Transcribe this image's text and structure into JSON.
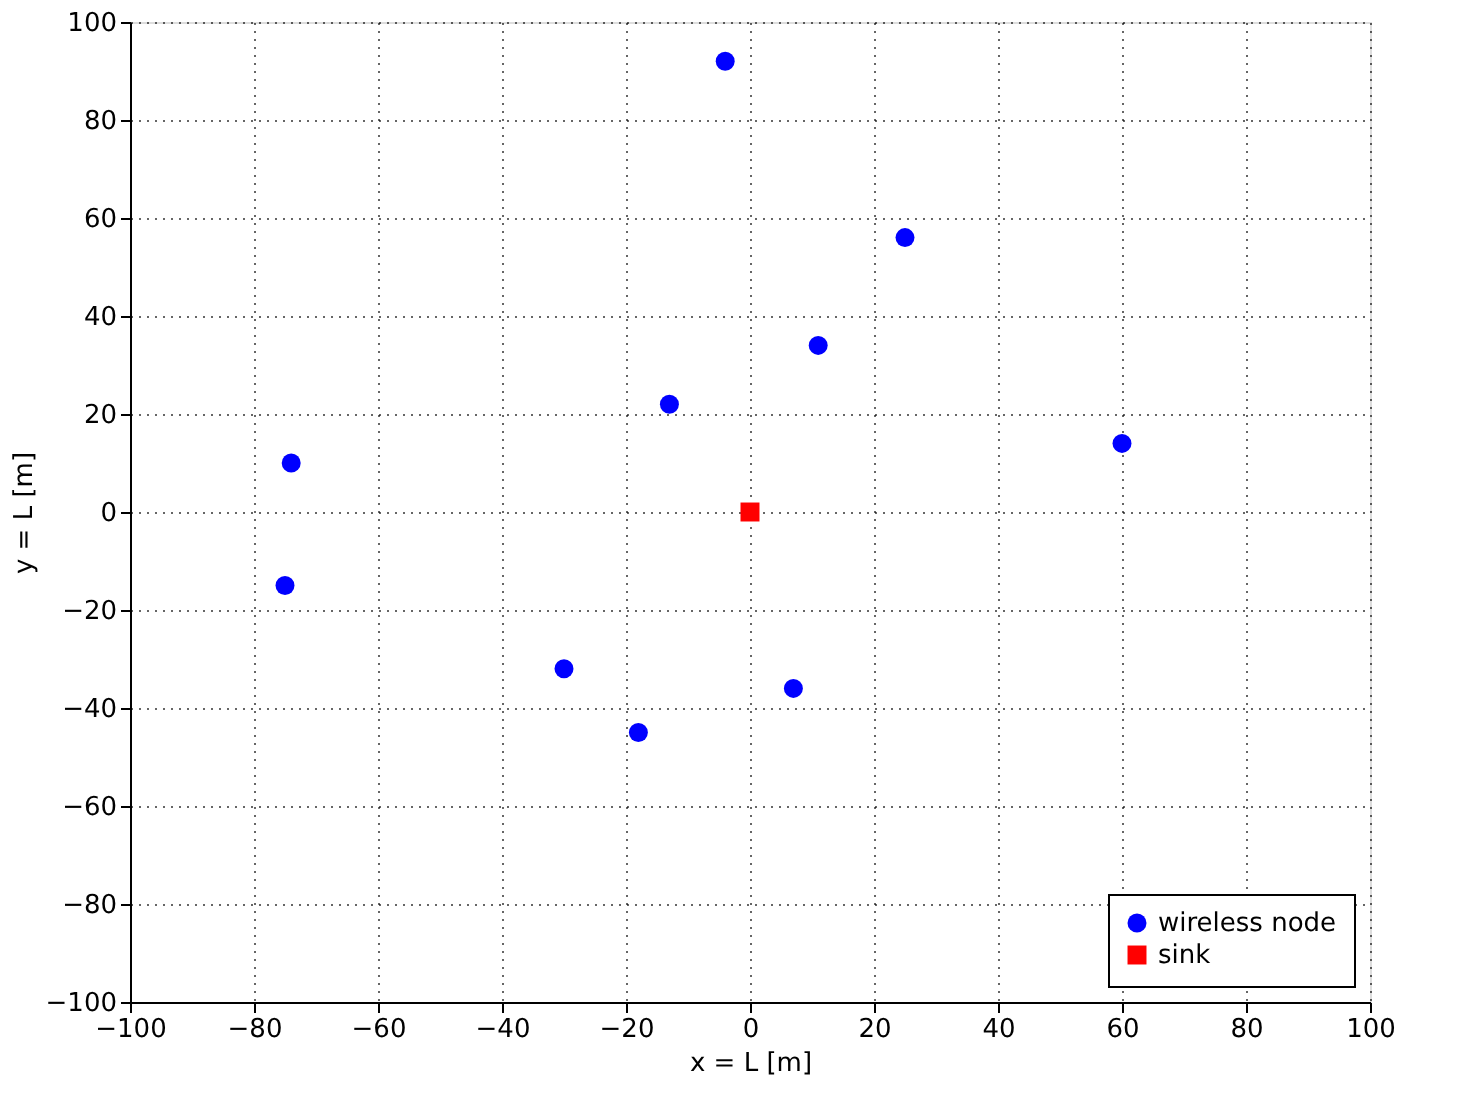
{
  "chart_data": {
    "type": "scatter",
    "xlabel": "x = L [m]",
    "ylabel": "y = L [m]",
    "xlim": [
      -100,
      100
    ],
    "ylim": [
      -100,
      100
    ],
    "xticks": [
      -100,
      -80,
      -60,
      -40,
      -20,
      0,
      20,
      40,
      60,
      80,
      100
    ],
    "yticks": [
      -100,
      -80,
      -60,
      -40,
      -20,
      0,
      20,
      40,
      60,
      80,
      100
    ],
    "grid": true,
    "legend": "bottom right",
    "series": [
      {
        "name": "wireless node",
        "color": "#0000ff",
        "marker": "circle",
        "x": [
          -4,
          25,
          11,
          -13,
          60,
          -74,
          -75,
          -30,
          7,
          -18
        ],
        "values": [
          92,
          56,
          34,
          22,
          14,
          10,
          -15,
          -32,
          -36,
          -45
        ]
      },
      {
        "name": "sink",
        "color": "#ff0000",
        "marker": "square",
        "x": [
          0
        ],
        "values": [
          0
        ]
      }
    ]
  }
}
